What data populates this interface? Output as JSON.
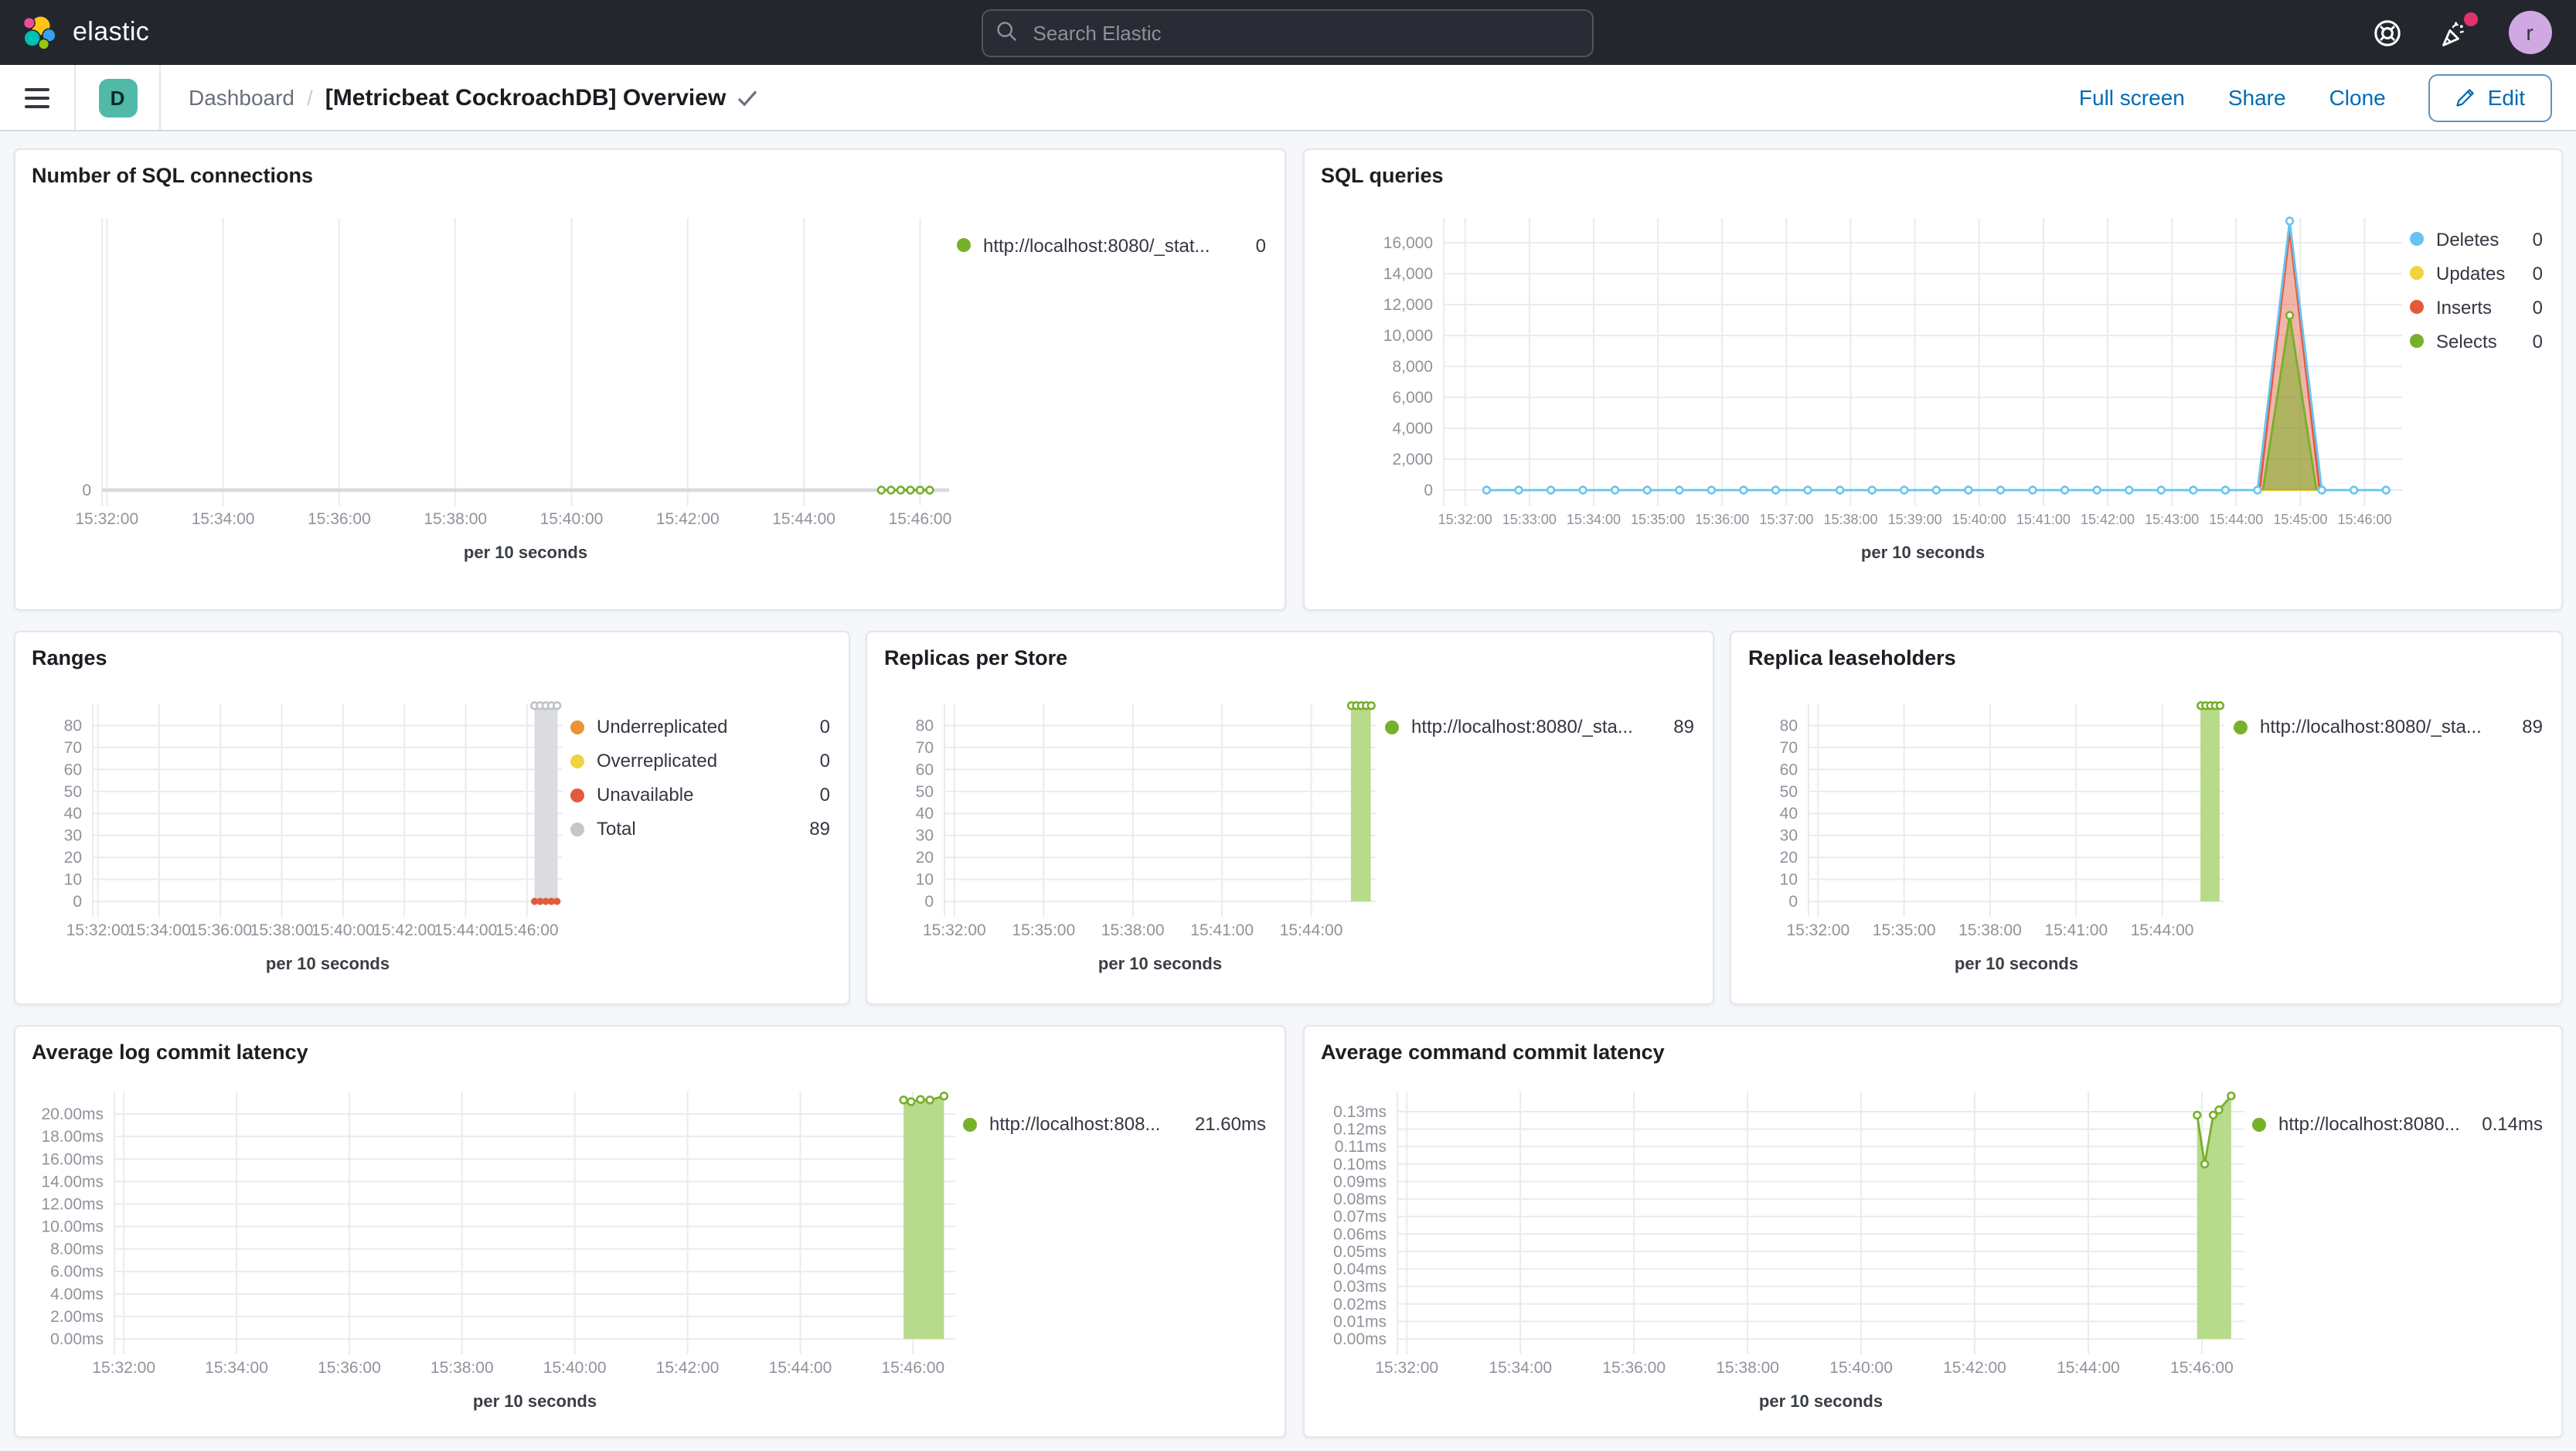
{
  "header": {
    "logo_text": "elastic",
    "search_placeholder": "Search Elastic",
    "avatar_initial": "r"
  },
  "toolbar": {
    "space_badge": "D",
    "breadcrumb_root": "Dashboard",
    "breadcrumb_separator": "/",
    "title": "[Metricbeat CockroachDB] Overview",
    "actions": {
      "full_screen": "Full screen",
      "share": "Share",
      "clone": "Clone"
    },
    "edit_label": "Edit"
  },
  "colors": {
    "header_bg": "#24262E",
    "link_blue": "#006BB4",
    "badge_teal": "#50B9A8",
    "accent_pink": "#E2326E",
    "series_green": "#77B02A",
    "series_blue": "#69C3F1",
    "series_yellow": "#F1D33F",
    "series_red": "#E4593C",
    "series_orange": "#EE9234",
    "series_gray": "#C4C7CC"
  },
  "chart_data": [
    {
      "type": "line",
      "title": "Number of SQL connections",
      "xlabel": "per 10 seconds",
      "x_domain": [
        "15:31:55",
        "15:46:30"
      ],
      "y_domain": [
        0,
        8
      ],
      "x_ticks": [
        "15:32:00",
        "15:34:00",
        "15:36:00",
        "15:38:00",
        "15:40:00",
        "15:42:00",
        "15:44:00",
        "15:46:00"
      ],
      "y_ticks": [
        {
          "label": "0",
          "value": 0
        }
      ],
      "baseline": true,
      "series": [
        {
          "name": "http://localhost:8080/_stat...",
          "type": "line",
          "color": "#77B02A",
          "marker": "open",
          "segments": [
            {
              "range": {
                "from": "15:45:20",
                "to": "15:46:10",
                "step_s": 10,
                "y": 0
              }
            }
          ]
        }
      ],
      "legend": [
        {
          "label": "http://localhost:8080/_stat...",
          "value": "0",
          "color": "#77B02A"
        }
      ]
    },
    {
      "type": "line",
      "title": "SQL queries",
      "xlabel": "per 10 seconds",
      "x_domain": [
        "15:31:40",
        "15:46:35"
      ],
      "y_domain": [
        0,
        17600
      ],
      "x_ticks": [
        "15:32:00",
        "15:33:00",
        "15:34:00",
        "15:35:00",
        "15:36:00",
        "15:37:00",
        "15:38:00",
        "15:39:00",
        "15:40:00",
        "15:41:00",
        "15:42:00",
        "15:43:00",
        "15:44:00",
        "15:45:00",
        "15:46:00"
      ],
      "y_ticks": [
        {
          "label": "0",
          "value": 0
        },
        {
          "label": "2,000",
          "value": 2000
        },
        {
          "label": "4,000",
          "value": 4000
        },
        {
          "label": "6,000",
          "value": 6000
        },
        {
          "label": "8,000",
          "value": 8000
        },
        {
          "label": "10,000",
          "value": 10000
        },
        {
          "label": "12,000",
          "value": 12000
        },
        {
          "label": "14,000",
          "value": 14000
        },
        {
          "label": "16,000",
          "value": 16000
        }
      ],
      "series": [
        {
          "name": "Updates",
          "type": "line",
          "color": "#F1D33F",
          "marker": "none",
          "segments": [
            {
              "range": {
                "from": "15:32:20",
                "to": "15:46:20",
                "step_s": 420,
                "y": 0
              }
            }
          ]
        },
        {
          "name": "Inserts",
          "type": "area",
          "color": "#E4593C",
          "fill": "rgba(229,90,60,0.45)",
          "marker": "none",
          "points": [
            [
              "15:44:22",
              0
            ],
            [
              "15:44:50",
              16800
            ],
            [
              "15:45:18",
              0
            ]
          ]
        },
        {
          "name": "Selects",
          "type": "area",
          "color": "#77B02A",
          "fill": "rgba(119,176,42,0.55)",
          "marker": "peak",
          "points": [
            [
              "15:44:25",
              0
            ],
            [
              "15:44:50",
              11300
            ],
            [
              "15:45:15",
              0
            ]
          ]
        },
        {
          "name": "Deletes",
          "type": "line",
          "color": "#69C3F1",
          "marker": "open",
          "segments": [
            {
              "range": {
                "from": "15:32:20",
                "to": "15:44:20",
                "step_s": 30,
                "y": 0
              }
            },
            {
              "points": [
                [
                  "15:44:50",
                  17400
                ]
              ]
            },
            {
              "range": {
                "from": "15:45:20",
                "to": "15:46:20",
                "step_s": 30,
                "y": 0
              }
            }
          ]
        }
      ],
      "legend": [
        {
          "label": "Deletes",
          "value": "0",
          "color": "#69C3F1"
        },
        {
          "label": "Updates",
          "value": "0",
          "color": "#F1D33F"
        },
        {
          "label": "Inserts",
          "value": "0",
          "color": "#E4593C"
        },
        {
          "label": "Selects",
          "value": "0",
          "color": "#77B02A"
        }
      ]
    },
    {
      "type": "bar",
      "title": "Ranges",
      "xlabel": "per 10 seconds",
      "x_domain": [
        "15:31:50",
        "15:47:10"
      ],
      "y_domain": [
        0,
        90
      ],
      "x_ticks": [
        "15:32:00",
        "15:34:00",
        "15:36:00",
        "15:38:00",
        "15:40:00",
        "15:42:00",
        "15:44:00",
        "15:46:00"
      ],
      "y_ticks": [
        {
          "label": "0",
          "value": 0
        },
        {
          "label": "10",
          "value": 10
        },
        {
          "label": "20",
          "value": 20
        },
        {
          "label": "30",
          "value": 30
        },
        {
          "label": "40",
          "value": 40
        },
        {
          "label": "50",
          "value": 50
        },
        {
          "label": "60",
          "value": 60
        },
        {
          "label": "70",
          "value": 70
        },
        {
          "label": "80",
          "value": 80
        }
      ],
      "series": [
        {
          "name": "Total",
          "type": "bar",
          "fill": "#DADCDF",
          "from": "15:46:15",
          "to": "15:47:00",
          "value": 89
        },
        {
          "name": "Total markers",
          "type": "dots",
          "marker": "open",
          "color": "#BFC3C9",
          "segments": [
            {
              "range": {
                "from": "15:46:15",
                "to": "15:47:00",
                "step_s": 11,
                "y": 89
              }
            }
          ]
        },
        {
          "name": "Unavailable",
          "type": "dots",
          "marker": "filled",
          "color": "#E4593C",
          "segments": [
            {
              "range": {
                "from": "15:46:15",
                "to": "15:47:00",
                "step_s": 11,
                "y": 0
              }
            }
          ]
        }
      ],
      "legend": [
        {
          "label": "Underreplicated",
          "value": "0",
          "color": "#EE9234"
        },
        {
          "label": "Overreplicated",
          "value": "0",
          "color": "#F1D33F"
        },
        {
          "label": "Unavailable",
          "value": "0",
          "color": "#E4593C"
        },
        {
          "label": "Total",
          "value": "89",
          "color": "#C4C7CC"
        }
      ]
    },
    {
      "type": "bar",
      "title": "Replicas per Store",
      "xlabel": "per 10 seconds",
      "x_domain": [
        "15:31:40",
        "15:46:10"
      ],
      "y_domain": [
        0,
        90
      ],
      "x_ticks": [
        "15:32:00",
        "15:35:00",
        "15:38:00",
        "15:41:00",
        "15:44:00"
      ],
      "y_ticks": [
        {
          "label": "0",
          "value": 0
        },
        {
          "label": "10",
          "value": 10
        },
        {
          "label": "20",
          "value": 20
        },
        {
          "label": "30",
          "value": 30
        },
        {
          "label": "40",
          "value": 40
        },
        {
          "label": "50",
          "value": 50
        },
        {
          "label": "60",
          "value": 60
        },
        {
          "label": "70",
          "value": 70
        },
        {
          "label": "80",
          "value": 80
        }
      ],
      "series": [
        {
          "name": "http://localhost:8080/_sta...",
          "type": "bar",
          "fill": "#B7DA8B",
          "from": "15:45:20",
          "to": "15:46:00",
          "value": 89
        },
        {
          "name": "markers",
          "type": "dots",
          "marker": "open",
          "color": "#77B02A",
          "segments": [
            {
              "range": {
                "from": "15:45:21",
                "to": "15:46:01",
                "step_s": 10,
                "y": 89
              }
            }
          ]
        }
      ],
      "legend": [
        {
          "label": "http://localhost:8080/_sta...",
          "value": "89",
          "color": "#77B02A"
        }
      ]
    },
    {
      "type": "bar",
      "title": "Replica leaseholders",
      "xlabel": "per 10 seconds",
      "x_domain": [
        "15:31:40",
        "15:46:10"
      ],
      "y_domain": [
        0,
        90
      ],
      "x_ticks": [
        "15:32:00",
        "15:35:00",
        "15:38:00",
        "15:41:00",
        "15:44:00"
      ],
      "y_ticks": [
        {
          "label": "0",
          "value": 0
        },
        {
          "label": "10",
          "value": 10
        },
        {
          "label": "20",
          "value": 20
        },
        {
          "label": "30",
          "value": 30
        },
        {
          "label": "40",
          "value": 40
        },
        {
          "label": "50",
          "value": 50
        },
        {
          "label": "60",
          "value": 60
        },
        {
          "label": "70",
          "value": 70
        },
        {
          "label": "80",
          "value": 80
        }
      ],
      "series": [
        {
          "name": "http://localhost:8080/_sta...",
          "type": "bar",
          "fill": "#B7DA8B",
          "from": "15:45:20",
          "to": "15:46:00",
          "value": 89
        },
        {
          "name": "markers",
          "type": "dots",
          "marker": "open",
          "color": "#77B02A",
          "segments": [
            {
              "range": {
                "from": "15:45:21",
                "to": "15:46:01",
                "step_s": 10,
                "y": 89
              }
            }
          ]
        }
      ],
      "legend": [
        {
          "label": "http://localhost:8080/_sta...",
          "value": "89",
          "color": "#77B02A"
        }
      ]
    },
    {
      "type": "area",
      "title": "Average log commit latency",
      "xlabel": "per 10 seconds",
      "x_domain": [
        "15:31:50",
        "15:46:45"
      ],
      "y_domain": [
        0,
        22
      ],
      "x_ticks": [
        "15:32:00",
        "15:34:00",
        "15:36:00",
        "15:38:00",
        "15:40:00",
        "15:42:00",
        "15:44:00",
        "15:46:00"
      ],
      "y_ticks": [
        {
          "label": "0.00ms",
          "value": 0
        },
        {
          "label": "2.00ms",
          "value": 2
        },
        {
          "label": "4.00ms",
          "value": 4
        },
        {
          "label": "6.00ms",
          "value": 6
        },
        {
          "label": "8.00ms",
          "value": 8
        },
        {
          "label": "10.00ms",
          "value": 10
        },
        {
          "label": "12.00ms",
          "value": 12
        },
        {
          "label": "14.00ms",
          "value": 14
        },
        {
          "label": "16.00ms",
          "value": 16
        },
        {
          "label": "18.00ms",
          "value": 18
        },
        {
          "label": "20.00ms",
          "value": 20
        }
      ],
      "series": [
        {
          "name": "http://localhost:808...",
          "type": "area",
          "color": "#77B02A",
          "fill": "#B7DA8B",
          "marker": "open",
          "points": [
            [
              "15:45:50",
              21.25
            ],
            [
              "15:45:58",
              21.1
            ],
            [
              "15:46:08",
              21.3
            ],
            [
              "15:46:18",
              21.25
            ],
            [
              "15:46:33",
              21.6
            ]
          ]
        }
      ],
      "legend": [
        {
          "label": "http://localhost:808...",
          "value": "21.60ms",
          "color": "#77B02A"
        }
      ]
    },
    {
      "type": "area",
      "title": "Average command commit latency",
      "xlabel": "per 10 seconds",
      "x_domain": [
        "15:31:50",
        "15:46:45"
      ],
      "y_domain": [
        0,
        0.1415
      ],
      "x_ticks": [
        "15:32:00",
        "15:34:00",
        "15:36:00",
        "15:38:00",
        "15:40:00",
        "15:42:00",
        "15:44:00",
        "15:46:00"
      ],
      "y_ticks": [
        {
          "label": "0.00ms",
          "value": 0
        },
        {
          "label": "0.01ms",
          "value": 0.01
        },
        {
          "label": "0.02ms",
          "value": 0.02
        },
        {
          "label": "0.03ms",
          "value": 0.03
        },
        {
          "label": "0.04ms",
          "value": 0.04
        },
        {
          "label": "0.05ms",
          "value": 0.05
        },
        {
          "label": "0.06ms",
          "value": 0.06
        },
        {
          "label": "0.07ms",
          "value": 0.07
        },
        {
          "label": "0.08ms",
          "value": 0.08
        },
        {
          "label": "0.09ms",
          "value": 0.09
        },
        {
          "label": "0.10ms",
          "value": 0.1
        },
        {
          "label": "0.11ms",
          "value": 0.11
        },
        {
          "label": "0.12ms",
          "value": 0.12
        },
        {
          "label": "0.13ms",
          "value": 0.13
        }
      ],
      "series": [
        {
          "name": "http://localhost:8080...",
          "type": "area",
          "color": "#77B02A",
          "fill": "#B7DA8B",
          "marker": "open",
          "points": [
            [
              "15:45:55",
              0.128
            ],
            [
              "15:46:03",
              0.1
            ],
            [
              "15:46:12",
              0.128
            ],
            [
              "15:46:18",
              0.131
            ],
            [
              "15:46:31",
              0.139
            ]
          ]
        }
      ],
      "legend": [
        {
          "label": "http://localhost:8080...",
          "value": "0.14ms",
          "color": "#77B02A"
        }
      ]
    }
  ]
}
